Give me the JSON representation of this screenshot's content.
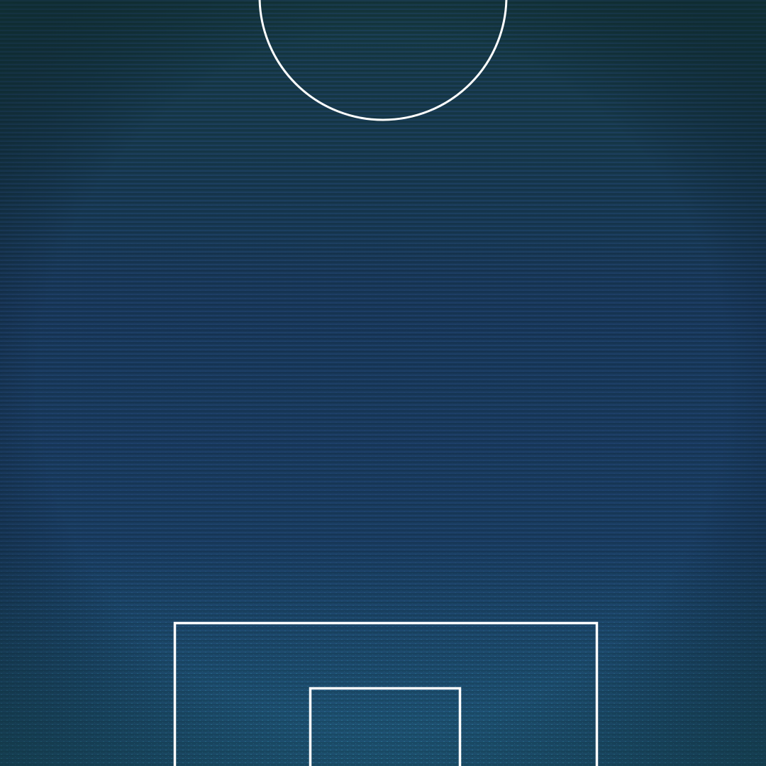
{
  "pitch": {
    "surface": "football-pitch-half",
    "colors": {
      "background_top": "#173a52",
      "background_mid": "#17365a",
      "background_bottom": "#1a3c5e",
      "glow": "#2a7fa8",
      "line": "#ffffff"
    },
    "markings": [
      "center-circle",
      "penalty-area",
      "goal-area"
    ]
  }
}
